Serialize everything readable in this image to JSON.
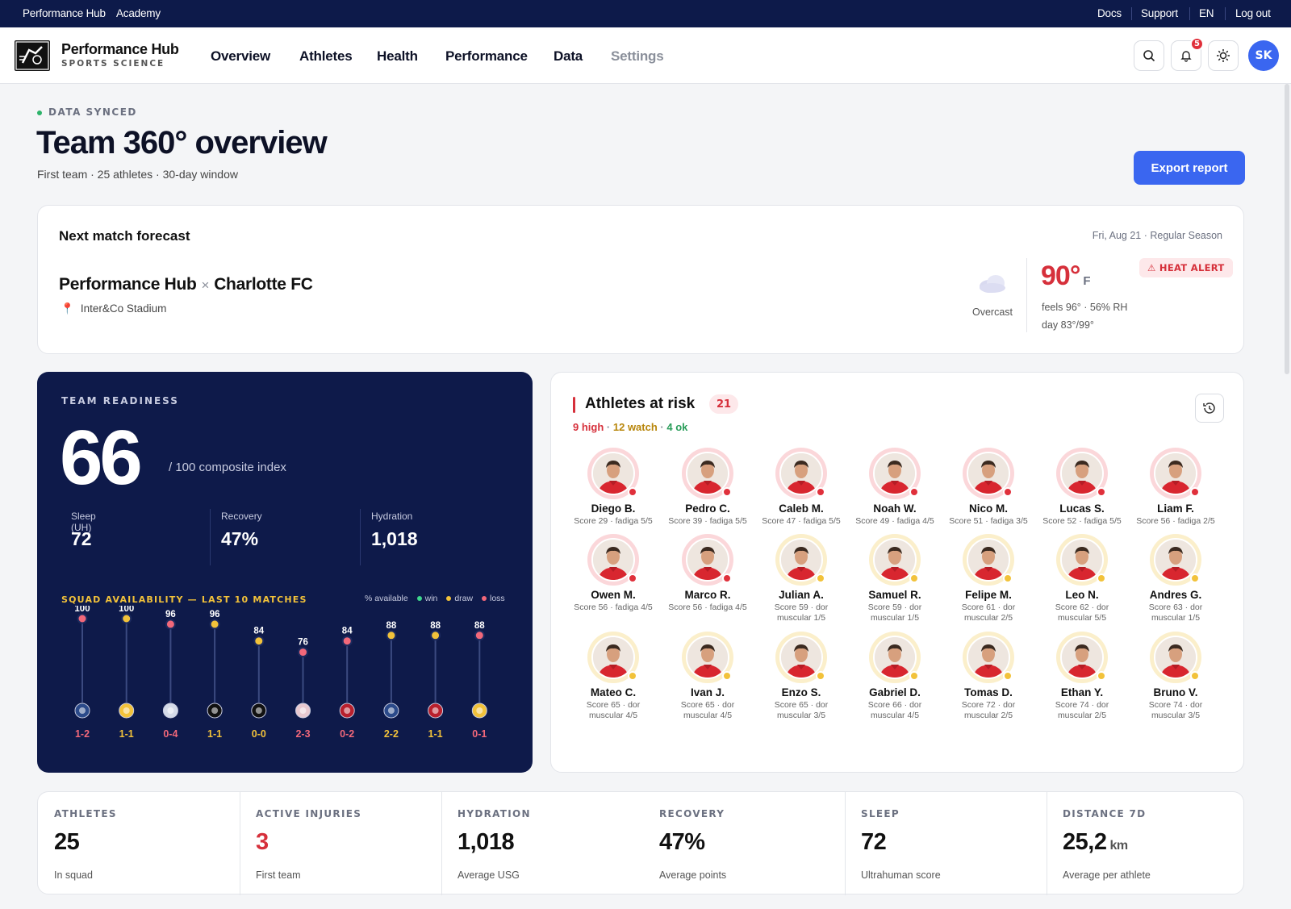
{
  "topbar": {
    "left": [
      "Performance Hub",
      "Academy"
    ],
    "right": [
      "Docs",
      "Support",
      "EN",
      "Log out"
    ]
  },
  "brand": {
    "name": "Performance Hub",
    "tagline": "SPORTS SCIENCE"
  },
  "nav": [
    "Overview",
    "Athletes",
    "Health",
    "Performance",
    "Data",
    "Settings"
  ],
  "header_icons": [
    "search-icon",
    "bell-icon",
    "sun-icon"
  ],
  "notifications": "5",
  "user_initials": "SK",
  "status": "DATA SYNCED",
  "title": "Team 360° overview",
  "subtitle": "First team · 25 athletes · 30-day window",
  "export_label": "Export report",
  "forecast": {
    "title": "Next match forecast",
    "date": "Fri, Aug 21 · Regular Season",
    "home": "Performance Hub",
    "vs": "×",
    "away": "Charlotte FC",
    "venue": "Inter&Co Stadium",
    "condition": "Overcast",
    "temp": "90°",
    "unit": "F",
    "feels": "feels 96° · 56% RH",
    "day": "day 83°/99°",
    "alert": "⚠ HEAT ALERT"
  },
  "readiness": {
    "title": "TEAM READINESS",
    "score": "66",
    "of": "/ 100 composite index",
    "metrics": [
      {
        "label": "Sleep (UH)",
        "value": "72"
      },
      {
        "label": "Recovery",
        "value": "47%"
      },
      {
        "label": "Hydration",
        "value": "1,018"
      }
    ],
    "squad_title": "SQUAD AVAILABILITY — LAST 10 MATCHES",
    "legend": {
      "pct": "% available",
      "win": "win",
      "draw": "draw",
      "loss": "loss"
    },
    "colors": {
      "win": "#3dd68c",
      "draw": "#f2c23a",
      "loss": "#f2687a"
    }
  },
  "chart_data": {
    "type": "scatter",
    "title": "SQUAD AVAILABILITY — LAST 10 MATCHES",
    "ylim": [
      0,
      100
    ],
    "series": [
      {
        "name": "% available",
        "values": [
          100,
          100,
          96,
          96,
          84,
          76,
          84,
          88,
          88,
          88
        ]
      }
    ],
    "results": [
      "loss",
      "draw",
      "loss",
      "draw",
      "draw",
      "loss",
      "loss",
      "draw",
      "draw",
      "loss"
    ],
    "scores": [
      "1-2",
      "1-1",
      "0-4",
      "1-1",
      "0-0",
      "2-3",
      "0-2",
      "2-2",
      "1-1",
      "0-1"
    ],
    "opponent_icons": [
      "club-crest-icon",
      "club-crest-icon",
      "club-crest-icon",
      "club-crest-icon",
      "club-crest-icon",
      "club-crest-icon",
      "club-crest-icon",
      "club-crest-icon",
      "club-crest-icon",
      "club-crest-icon"
    ]
  },
  "risk": {
    "title": "Athletes at risk",
    "count": "21",
    "high": "9 high",
    "watch": "12 watch",
    "ok": "4 ok",
    "sep": "·",
    "athletes": [
      {
        "name": "Diego B.",
        "info": "Score 29 · fadiga 5/5",
        "level": "red"
      },
      {
        "name": "Pedro C.",
        "info": "Score 39 · fadiga 5/5",
        "level": "red"
      },
      {
        "name": "Caleb M.",
        "info": "Score 47 · fadiga 5/5",
        "level": "red"
      },
      {
        "name": "Noah W.",
        "info": "Score 49 · fadiga 4/5",
        "level": "red"
      },
      {
        "name": "Nico M.",
        "info": "Score 51 · fadiga 3/5",
        "level": "red"
      },
      {
        "name": "Lucas S.",
        "info": "Score 52 · fadiga 5/5",
        "level": "red"
      },
      {
        "name": "Liam F.",
        "info": "Score 56 · fadiga 2/5",
        "level": "red"
      },
      {
        "name": "Owen M.",
        "info": "Score 56 · fadiga 4/5",
        "level": "red"
      },
      {
        "name": "Marco R.",
        "info": "Score 56 · fadiga 4/5",
        "level": "red"
      },
      {
        "name": "Julian A.",
        "info": "Score 59 · dor muscular 1/5",
        "level": "yellow"
      },
      {
        "name": "Samuel R.",
        "info": "Score 59 · dor muscular 1/5",
        "level": "yellow"
      },
      {
        "name": "Felipe M.",
        "info": "Score 61 · dor muscular 2/5",
        "level": "yellow"
      },
      {
        "name": "Leo N.",
        "info": "Score 62 · dor muscular 5/5",
        "level": "yellow"
      },
      {
        "name": "Andres G.",
        "info": "Score 63 · dor muscular 1/5",
        "level": "yellow"
      },
      {
        "name": "Mateo C.",
        "info": "Score 65 · dor muscular 4/5",
        "level": "yellow"
      },
      {
        "name": "Ivan J.",
        "info": "Score 65 · dor muscular 4/5",
        "level": "yellow"
      },
      {
        "name": "Enzo S.",
        "info": "Score 65 · dor muscular 3/5",
        "level": "yellow"
      },
      {
        "name": "Gabriel D.",
        "info": "Score 66 · dor muscular 4/5",
        "level": "yellow"
      },
      {
        "name": "Tomas D.",
        "info": "Score 72 · dor muscular 2/5",
        "level": "yellow"
      },
      {
        "name": "Ethan Y.",
        "info": "Score 74 · dor muscular 2/5",
        "level": "yellow"
      },
      {
        "name": "Bruno V.",
        "info": "Score 74 · dor muscular 3/5",
        "level": "yellow"
      }
    ]
  },
  "stats": [
    {
      "label": "ATHLETES",
      "value": "25",
      "unit": "",
      "desc": "In squad"
    },
    {
      "label": "ACTIVE INJURIES",
      "value": "3",
      "unit": "",
      "desc": "First team"
    },
    {
      "label": "HYDRATION",
      "value": "1,018",
      "unit": "",
      "desc": "Average USG"
    },
    {
      "label": "RECOVERY",
      "value": "47%",
      "unit": "",
      "desc": "Average points"
    },
    {
      "label": "SLEEP",
      "value": "72",
      "unit": "",
      "desc": "Ultrahuman score"
    },
    {
      "label": "DISTANCE 7D",
      "value": "25,2",
      "unit": "km",
      "desc": "Average per athlete"
    }
  ]
}
